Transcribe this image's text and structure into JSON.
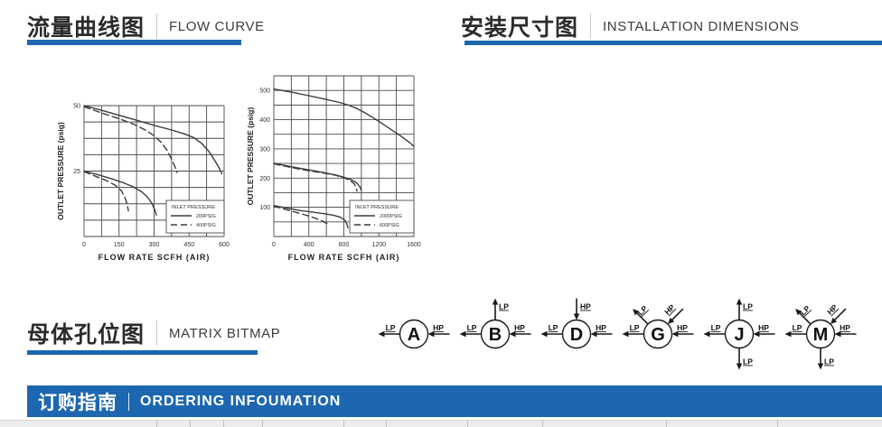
{
  "sections": {
    "flow_curve": {
      "zh": "流量曲线图",
      "en": "FLOW CURVE"
    },
    "installation": {
      "zh": "安装尺寸图",
      "en": "INSTALLATION DIMENSIONS"
    },
    "matrix": {
      "zh": "母体孔位图",
      "en": "MATRIX BITMAP"
    },
    "ordering": {
      "zh": "订购指南",
      "en": "ORDERING INFOUMATION"
    }
  },
  "accent_color": "#1c67b0",
  "chart_data": [
    {
      "type": "line",
      "name": "flow-curve-small",
      "xlabel": "FLOW RATE SCFH (AIR)",
      "ylabel": "OUTLET PRESSURE (psig)",
      "xlim": [
        0,
        600
      ],
      "ylim": [
        0,
        50
      ],
      "xticks": [
        0,
        150,
        300,
        450,
        600
      ],
      "yticks": [
        25,
        50
      ],
      "xgrid": 8,
      "ygrid": 8,
      "grid": true,
      "legend": {
        "position": "lower-right",
        "title": "INLET PRESSURE",
        "entries": [
          {
            "style": "solid",
            "label": "200PSIG"
          },
          {
            "style": "dashed",
            "label": "400PSIG"
          }
        ]
      },
      "series": [
        {
          "name": "200PSIG set 50",
          "style": "solid",
          "points": [
            [
              0,
              50
            ],
            [
              75,
              48.2
            ],
            [
              150,
              46.3
            ],
            [
              225,
              44.4
            ],
            [
              300,
              42.5
            ],
            [
              375,
              40.7
            ],
            [
              430,
              39.2
            ],
            [
              470,
              37.8
            ],
            [
              505,
              35.5
            ],
            [
              535,
              32.5
            ],
            [
              560,
              29
            ],
            [
              580,
              26
            ],
            [
              590,
              24
            ]
          ]
        },
        {
          "name": "400PSIG set 50",
          "style": "dashed",
          "points": [
            [
              0,
              49.6
            ],
            [
              75,
              47.2
            ],
            [
              150,
              45
            ],
            [
              210,
              43
            ],
            [
              260,
              40.8
            ],
            [
              300,
              38.5
            ],
            [
              330,
              36
            ],
            [
              355,
              33
            ],
            [
              375,
              29.5
            ],
            [
              390,
              26.5
            ],
            [
              398,
              24.5
            ]
          ]
        },
        {
          "name": "200PSIG set 25",
          "style": "solid",
          "points": [
            [
              0,
              25
            ],
            [
              60,
              23.6
            ],
            [
              120,
              22
            ],
            [
              170,
              20.5
            ],
            [
              210,
              19
            ],
            [
              245,
              17.2
            ],
            [
              270,
              15.2
            ],
            [
              290,
              12.8
            ],
            [
              303,
              10.2
            ],
            [
              310,
              8.2
            ]
          ]
        },
        {
          "name": "400PSIG set 25",
          "style": "dashed",
          "points": [
            [
              0,
              24.8
            ],
            [
              50,
              23
            ],
            [
              100,
              21.2
            ],
            [
              135,
              19.5
            ],
            [
              160,
              17.5
            ],
            [
              175,
              15
            ],
            [
              185,
              12.2
            ],
            [
              190,
              9.8
            ]
          ]
        }
      ]
    },
    {
      "type": "line",
      "name": "flow-curve-large",
      "xlabel": "FLOW RATE SCFH (AIR)",
      "ylabel": "OUTLET PRESSURE (psig)",
      "xlim": [
        0,
        1600
      ],
      "ylim": [
        0,
        550
      ],
      "xticks": [
        0,
        400,
        800,
        1200,
        1600
      ],
      "yticks": [
        100,
        200,
        300,
        400,
        500
      ],
      "xgrid": 8,
      "ygrid": 11,
      "grid": true,
      "legend": {
        "position": "lower-right",
        "title": "INLET PRESSURE",
        "entries": [
          {
            "style": "solid",
            "label": "2000PSIG"
          },
          {
            "style": "dashed",
            "label": "600PSIG"
          }
        ]
      },
      "series": [
        {
          "name": "set 500",
          "style": "solid",
          "points": [
            [
              0,
              505
            ],
            [
              200,
              494
            ],
            [
              400,
              482
            ],
            [
              600,
              469
            ],
            [
              750,
              459
            ],
            [
              850,
              450
            ],
            [
              950,
              438
            ],
            [
              1050,
              422
            ],
            [
              1150,
              404
            ],
            [
              1250,
              384
            ],
            [
              1350,
              364
            ],
            [
              1450,
              344
            ],
            [
              1550,
              322
            ],
            [
              1600,
              308
            ]
          ]
        },
        {
          "name": "set 250 solid",
          "style": "solid",
          "points": [
            [
              0,
              251
            ],
            [
              200,
              239
            ],
            [
              400,
              228
            ],
            [
              550,
              220
            ],
            [
              700,
              211
            ],
            [
              800,
              203
            ],
            [
              880,
              195
            ],
            [
              940,
              185
            ],
            [
              980,
              172
            ],
            [
              1000,
              158
            ]
          ]
        },
        {
          "name": "set 250 dashed",
          "style": "dashed",
          "points": [
            [
              0,
              249
            ],
            [
              200,
              236
            ],
            [
              400,
              225
            ],
            [
              550,
              218
            ],
            [
              700,
              210
            ],
            [
              800,
              201
            ],
            [
              870,
              192
            ],
            [
              920,
              180
            ],
            [
              945,
              163
            ],
            [
              950,
              155
            ]
          ]
        },
        {
          "name": "set 100 solid",
          "style": "solid",
          "points": [
            [
              0,
              106
            ],
            [
              150,
              97
            ],
            [
              300,
              89
            ],
            [
              450,
              83
            ],
            [
              580,
              78
            ],
            [
              680,
              73
            ],
            [
              760,
              66
            ],
            [
              810,
              56
            ],
            [
              835,
              43
            ],
            [
              845,
              30
            ]
          ]
        },
        {
          "name": "set 100 dashed",
          "style": "dashed",
          "points": [
            [
              0,
              104
            ],
            [
              120,
              94
            ],
            [
              250,
              83
            ],
            [
              380,
              72
            ],
            [
              480,
              62
            ],
            [
              560,
              52
            ],
            [
              610,
              44
            ],
            [
              625,
              40
            ]
          ]
        }
      ]
    }
  ],
  "matrix_items": [
    {
      "letter": "A",
      "ports": [
        {
          "dir": "left",
          "flow": "out",
          "label": "LP"
        },
        {
          "dir": "right",
          "flow": "in",
          "label": "HP"
        }
      ]
    },
    {
      "letter": "B",
      "ports": [
        {
          "dir": "up",
          "flow": "out",
          "label": "LP"
        },
        {
          "dir": "left",
          "flow": "out",
          "label": "LP"
        },
        {
          "dir": "right",
          "flow": "in",
          "label": "HP"
        }
      ]
    },
    {
      "letter": "D",
      "ports": [
        {
          "dir": "up",
          "flow": "in",
          "label": "HP"
        },
        {
          "dir": "left",
          "flow": "out",
          "label": "LP"
        },
        {
          "dir": "right",
          "flow": "in",
          "label": "HP"
        }
      ]
    },
    {
      "letter": "G",
      "ports": [
        {
          "dir": "upleft",
          "flow": "out",
          "label": "LP"
        },
        {
          "dir": "upright",
          "flow": "in",
          "label": "HP"
        },
        {
          "dir": "left",
          "flow": "out",
          "label": "LP"
        },
        {
          "dir": "right",
          "flow": "in",
          "label": "HP"
        }
      ]
    },
    {
      "letter": "J",
      "ports": [
        {
          "dir": "up",
          "flow": "out",
          "label": "LP"
        },
        {
          "dir": "down",
          "flow": "out",
          "label": "LP"
        },
        {
          "dir": "left",
          "flow": "out",
          "label": "LP"
        },
        {
          "dir": "right",
          "flow": "in",
          "label": "HP"
        }
      ]
    },
    {
      "letter": "M",
      "ports": [
        {
          "dir": "upleft",
          "flow": "out",
          "label": "LP"
        },
        {
          "dir": "upright",
          "flow": "in",
          "label": "HP"
        },
        {
          "dir": "left",
          "flow": "out",
          "label": "LP"
        },
        {
          "dir": "right",
          "flow": "in",
          "label": "HP"
        },
        {
          "dir": "down",
          "flow": "out",
          "label": "LP"
        }
      ]
    }
  ]
}
